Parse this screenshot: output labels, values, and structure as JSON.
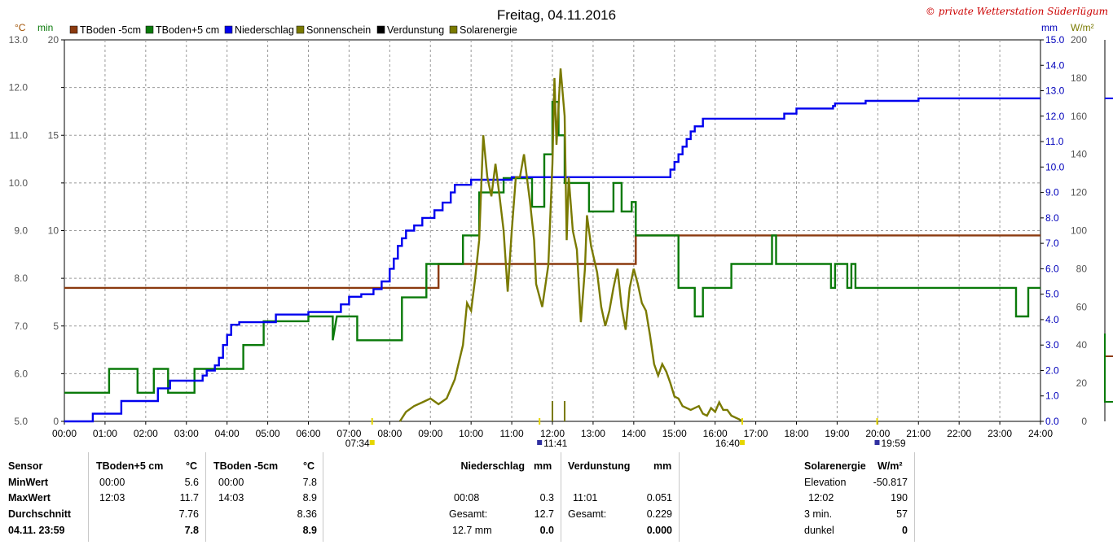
{
  "chart_data": {
    "type": "line",
    "title": "Freitag, 04.11.2016",
    "copyright": "© private Wetterstation Süderlügum",
    "axes": {
      "celsius_unit": "°C",
      "min_unit": "min",
      "mm_unit": "mm",
      "solar_unit": "W/m²",
      "celsius_ticks": [
        "13.0",
        "12.0",
        "11.0",
        "10.0",
        "9.0",
        "8.0",
        "7.0",
        "6.0",
        "5.0"
      ],
      "min_ticks": [
        "20",
        "15",
        "10",
        "5",
        "0"
      ],
      "mm_ticks": [
        "15.0",
        "14.0",
        "13.0",
        "12.0",
        "11.0",
        "10.0",
        "9.0",
        "8.0",
        "7.0",
        "6.0",
        "5.0",
        "4.0",
        "3.0",
        "2.0",
        "1.0",
        "0.0"
      ],
      "solar_ticks": [
        "200",
        "180",
        "160",
        "140",
        "120",
        "100",
        "80",
        "60",
        "40",
        "20",
        "0"
      ],
      "x_ticks": [
        "00:00",
        "01:00",
        "02:00",
        "03:00",
        "04:00",
        "05:00",
        "06:00",
        "07:00",
        "08:00",
        "09:00",
        "10:00",
        "11:00",
        "12:00",
        "13:00",
        "14:00",
        "15:00",
        "16:00",
        "17:00",
        "18:00",
        "19:00",
        "20:00",
        "21:00",
        "22:00",
        "23:00",
        "24:00"
      ],
      "celsius_range": [
        5,
        13
      ],
      "mm_range": [
        0,
        15
      ],
      "solar_range": [
        0,
        200
      ],
      "x_range_hours": [
        0,
        24
      ],
      "grid": true
    },
    "legend": [
      {
        "label": "TBoden -5cm",
        "color": "#8b3a0f"
      },
      {
        "label": "TBoden+5 cm",
        "color": "#0a7a0a"
      },
      {
        "label": "Niederschlag",
        "color": "#0000ee"
      },
      {
        "label": "Sonnenschein",
        "color": "#7a7a00"
      },
      {
        "label": "Verdunstung",
        "color": "#000000"
      },
      {
        "label": "Solarenergie",
        "color": "#7a7a00"
      }
    ],
    "markers": [
      {
        "label": "07:34",
        "hour": 7.567
      },
      {
        "label": "11:41",
        "hour": 11.683
      },
      {
        "label": "16:40",
        "hour": 16.667
      },
      {
        "label": "19:59",
        "hour": 19.983
      }
    ],
    "series": [
      {
        "name": "TBoden -5cm",
        "color": "#8b3a0f",
        "axis": "celsius",
        "step": true,
        "points": [
          [
            0,
            7.8
          ],
          [
            9.2,
            7.8
          ],
          [
            9.2,
            8.3
          ],
          [
            14.05,
            8.3
          ],
          [
            14.05,
            8.9
          ],
          [
            24,
            8.9
          ]
        ]
      },
      {
        "name": "TBoden+5 cm",
        "color": "#0a7a0a",
        "axis": "celsius",
        "step": true,
        "points": [
          [
            0,
            5.6
          ],
          [
            1.1,
            5.6
          ],
          [
            1.1,
            6.1
          ],
          [
            1.8,
            6.1
          ],
          [
            1.8,
            5.6
          ],
          [
            2.2,
            5.6
          ],
          [
            2.2,
            6.1
          ],
          [
            2.55,
            6.1
          ],
          [
            2.55,
            5.6
          ],
          [
            3.2,
            5.6
          ],
          [
            3.2,
            6.1
          ],
          [
            4.4,
            6.1
          ],
          [
            4.4,
            6.6
          ],
          [
            4.9,
            6.6
          ],
          [
            4.9,
            7.1
          ],
          [
            6.0,
            7.1
          ],
          [
            6.0,
            7.2
          ],
          [
            6.6,
            7.2
          ],
          [
            6.6,
            6.7
          ],
          [
            6.7,
            7.2
          ],
          [
            7.2,
            7.2
          ],
          [
            7.2,
            6.7
          ],
          [
            8.3,
            6.7
          ],
          [
            8.3,
            7.6
          ],
          [
            8.9,
            7.6
          ],
          [
            8.9,
            8.3
          ],
          [
            9.8,
            8.3
          ],
          [
            9.8,
            8.9
          ],
          [
            10.2,
            8.9
          ],
          [
            10.2,
            9.8
          ],
          [
            10.8,
            9.8
          ],
          [
            10.8,
            10.1
          ],
          [
            11.5,
            10.1
          ],
          [
            11.5,
            9.5
          ],
          [
            11.8,
            9.5
          ],
          [
            11.8,
            10.6
          ],
          [
            12.0,
            10.6
          ],
          [
            12.0,
            11.7
          ],
          [
            12.15,
            11.7
          ],
          [
            12.15,
            11.0
          ],
          [
            12.3,
            11.0
          ],
          [
            12.3,
            10.0
          ],
          [
            12.9,
            10.0
          ],
          [
            12.9,
            9.4
          ],
          [
            13.5,
            9.4
          ],
          [
            13.5,
            10.0
          ],
          [
            13.7,
            10.0
          ],
          [
            13.7,
            9.4
          ],
          [
            13.95,
            9.4
          ],
          [
            13.95,
            9.6
          ],
          [
            14.05,
            9.6
          ],
          [
            14.05,
            8.9
          ],
          [
            15.1,
            8.9
          ],
          [
            15.1,
            7.8
          ],
          [
            15.5,
            7.8
          ],
          [
            15.5,
            7.2
          ],
          [
            15.7,
            7.2
          ],
          [
            15.7,
            7.8
          ],
          [
            16.4,
            7.8
          ],
          [
            16.4,
            8.3
          ],
          [
            17.4,
            8.3
          ],
          [
            17.4,
            8.9
          ],
          [
            17.5,
            8.9
          ],
          [
            17.5,
            8.3
          ],
          [
            18.85,
            8.3
          ],
          [
            18.85,
            7.8
          ],
          [
            18.95,
            7.8
          ],
          [
            18.95,
            8.3
          ],
          [
            19.25,
            8.3
          ],
          [
            19.25,
            7.8
          ],
          [
            19.35,
            7.8
          ],
          [
            19.35,
            8.3
          ],
          [
            19.45,
            8.3
          ],
          [
            19.45,
            7.8
          ],
          [
            23.4,
            7.8
          ],
          [
            23.4,
            7.2
          ],
          [
            23.7,
            7.2
          ],
          [
            23.7,
            7.8
          ],
          [
            24,
            7.8
          ]
        ]
      },
      {
        "name": "Niederschlag",
        "color": "#0000ee",
        "axis": "mm",
        "step": true,
        "points": [
          [
            0,
            0
          ],
          [
            0.7,
            0
          ],
          [
            0.7,
            0.3
          ],
          [
            1.4,
            0.3
          ],
          [
            1.4,
            0.8
          ],
          [
            2.3,
            0.8
          ],
          [
            2.3,
            1.3
          ],
          [
            2.6,
            1.3
          ],
          [
            2.6,
            1.6
          ],
          [
            3.4,
            1.6
          ],
          [
            3.4,
            1.8
          ],
          [
            3.5,
            1.8
          ],
          [
            3.5,
            2.0
          ],
          [
            3.7,
            2.0
          ],
          [
            3.7,
            2.2
          ],
          [
            3.8,
            2.2
          ],
          [
            3.8,
            2.5
          ],
          [
            3.9,
            2.5
          ],
          [
            3.9,
            3.0
          ],
          [
            4.0,
            3.0
          ],
          [
            4.0,
            3.4
          ],
          [
            4.1,
            3.4
          ],
          [
            4.1,
            3.8
          ],
          [
            4.3,
            3.8
          ],
          [
            4.3,
            3.9
          ],
          [
            5.2,
            3.9
          ],
          [
            5.2,
            4.2
          ],
          [
            6.0,
            4.2
          ],
          [
            6.0,
            4.3
          ],
          [
            6.8,
            4.3
          ],
          [
            6.8,
            4.6
          ],
          [
            7.0,
            4.6
          ],
          [
            7.0,
            4.9
          ],
          [
            7.3,
            4.9
          ],
          [
            7.3,
            5.0
          ],
          [
            7.6,
            5.0
          ],
          [
            7.6,
            5.2
          ],
          [
            7.8,
            5.2
          ],
          [
            7.8,
            5.5
          ],
          [
            8.0,
            5.5
          ],
          [
            8.0,
            6.0
          ],
          [
            8.1,
            6.0
          ],
          [
            8.1,
            6.4
          ],
          [
            8.2,
            6.4
          ],
          [
            8.2,
            6.9
          ],
          [
            8.3,
            6.9
          ],
          [
            8.3,
            7.2
          ],
          [
            8.4,
            7.2
          ],
          [
            8.4,
            7.5
          ],
          [
            8.6,
            7.5
          ],
          [
            8.6,
            7.7
          ],
          [
            8.8,
            7.7
          ],
          [
            8.8,
            8.0
          ],
          [
            9.1,
            8.0
          ],
          [
            9.1,
            8.3
          ],
          [
            9.3,
            8.3
          ],
          [
            9.3,
            8.6
          ],
          [
            9.5,
            8.6
          ],
          [
            9.5,
            9.0
          ],
          [
            9.6,
            9.0
          ],
          [
            9.6,
            9.3
          ],
          [
            10.0,
            9.3
          ],
          [
            10.0,
            9.5
          ],
          [
            11.0,
            9.5
          ],
          [
            11.0,
            9.6
          ],
          [
            14.9,
            9.6
          ],
          [
            14.9,
            9.9
          ],
          [
            15.0,
            9.9
          ],
          [
            15.0,
            10.2
          ],
          [
            15.1,
            10.2
          ],
          [
            15.1,
            10.5
          ],
          [
            15.2,
            10.5
          ],
          [
            15.2,
            10.8
          ],
          [
            15.3,
            10.8
          ],
          [
            15.3,
            11.1
          ],
          [
            15.4,
            11.1
          ],
          [
            15.4,
            11.4
          ],
          [
            15.5,
            11.4
          ],
          [
            15.5,
            11.6
          ],
          [
            15.7,
            11.6
          ],
          [
            15.7,
            11.9
          ],
          [
            16.4,
            11.9
          ],
          [
            16.4,
            11.9
          ],
          [
            17.7,
            11.9
          ],
          [
            17.7,
            12.1
          ],
          [
            18.0,
            12.1
          ],
          [
            18.0,
            12.3
          ],
          [
            18.9,
            12.3
          ],
          [
            18.9,
            12.4
          ],
          [
            18.95,
            12.4
          ],
          [
            18.95,
            12.5
          ],
          [
            19.7,
            12.5
          ],
          [
            19.7,
            12.6
          ],
          [
            21.0,
            12.6
          ],
          [
            21.0,
            12.7
          ],
          [
            24,
            12.7
          ]
        ]
      },
      {
        "name": "Solarenergie",
        "color": "#7a7a00",
        "axis": "solar",
        "step": false,
        "points": [
          [
            8.25,
            0
          ],
          [
            8.4,
            5
          ],
          [
            8.6,
            8
          ],
          [
            8.8,
            10
          ],
          [
            9.0,
            12
          ],
          [
            9.2,
            9
          ],
          [
            9.4,
            12
          ],
          [
            9.6,
            22
          ],
          [
            9.8,
            40
          ],
          [
            9.9,
            62
          ],
          [
            10.0,
            58
          ],
          [
            10.1,
            75
          ],
          [
            10.2,
            95
          ],
          [
            10.3,
            150
          ],
          [
            10.4,
            128
          ],
          [
            10.5,
            118
          ],
          [
            10.6,
            135
          ],
          [
            10.7,
            118
          ],
          [
            10.8,
            100
          ],
          [
            10.9,
            68
          ],
          [
            11.0,
            100
          ],
          [
            11.1,
            128
          ],
          [
            11.2,
            128
          ],
          [
            11.3,
            140
          ],
          [
            11.45,
            115
          ],
          [
            11.55,
            95
          ],
          [
            11.6,
            72
          ],
          [
            11.75,
            60
          ],
          [
            11.9,
            82
          ],
          [
            12.0,
            135
          ],
          [
            12.05,
            180
          ],
          [
            12.1,
            145
          ],
          [
            12.2,
            185
          ],
          [
            12.3,
            160
          ],
          [
            12.35,
            95
          ],
          [
            12.4,
            128
          ],
          [
            12.5,
            100
          ],
          [
            12.6,
            90
          ],
          [
            12.7,
            52
          ],
          [
            12.8,
            80
          ],
          [
            12.85,
            108
          ],
          [
            12.95,
            92
          ],
          [
            13.1,
            78
          ],
          [
            13.2,
            60
          ],
          [
            13.3,
            50
          ],
          [
            13.4,
            58
          ],
          [
            13.5,
            70
          ],
          [
            13.6,
            80
          ],
          [
            13.7,
            60
          ],
          [
            13.8,
            48
          ],
          [
            13.9,
            70
          ],
          [
            14.0,
            80
          ],
          [
            14.1,
            72
          ],
          [
            14.2,
            62
          ],
          [
            14.3,
            58
          ],
          [
            14.4,
            45
          ],
          [
            14.5,
            30
          ],
          [
            14.6,
            24
          ],
          [
            14.7,
            30
          ],
          [
            14.8,
            26
          ],
          [
            14.9,
            20
          ],
          [
            15.0,
            13
          ],
          [
            15.1,
            12
          ],
          [
            15.2,
            8
          ],
          [
            15.4,
            6
          ],
          [
            15.6,
            8
          ],
          [
            15.7,
            4
          ],
          [
            15.8,
            3
          ],
          [
            15.9,
            7
          ],
          [
            16.0,
            5
          ],
          [
            16.1,
            10
          ],
          [
            16.2,
            6
          ],
          [
            16.3,
            6
          ],
          [
            16.4,
            3
          ],
          [
            16.6,
            1
          ],
          [
            16.67,
            0
          ]
        ]
      }
    ]
  },
  "stats": {
    "sensor": {
      "header": "Sensor",
      "rows": [
        "MinWert",
        "MaxWert",
        "Durchschnitt",
        "04.11. 23:59"
      ]
    },
    "tboden5": {
      "header": "TBoden+5 cm",
      "unit": "°C",
      "min_time": "00:00",
      "min_val": "5.6",
      "max_time": "12:03",
      "max_val": "11.7",
      "avg": "7.76",
      "current": "7.8"
    },
    "tbodenm5": {
      "header": "TBoden -5cm",
      "unit": "°C",
      "min_time": "00:00",
      "min_val": "7.8",
      "max_time": "14:03",
      "max_val": "8.9",
      "avg": "8.36",
      "current": "8.9"
    },
    "niederschlag": {
      "header": "Niederschlag",
      "unit": "mm",
      "max_time": "00:08",
      "max_val": "0.3",
      "gesamt_label": "Gesamt:",
      "gesamt": "12.7",
      "current_label": "12.7 mm",
      "current": "0.0"
    },
    "verdunstung": {
      "header": "Verdunstung",
      "unit": "mm",
      "max_time": "11:01",
      "max_val": "0.051",
      "gesamt_label": "Gesamt:",
      "gesamt": "0.229",
      "current": "0.000"
    },
    "solar": {
      "header": "Solarenergie",
      "unit": "W/m²",
      "elev_label": "Elevation",
      "elev": "-50.817",
      "max_time": "12:02",
      "max_val": "190",
      "min3_label": "3 min.",
      "min3": "57",
      "dunkel_label": "dunkel",
      "dunkel": "0"
    }
  }
}
